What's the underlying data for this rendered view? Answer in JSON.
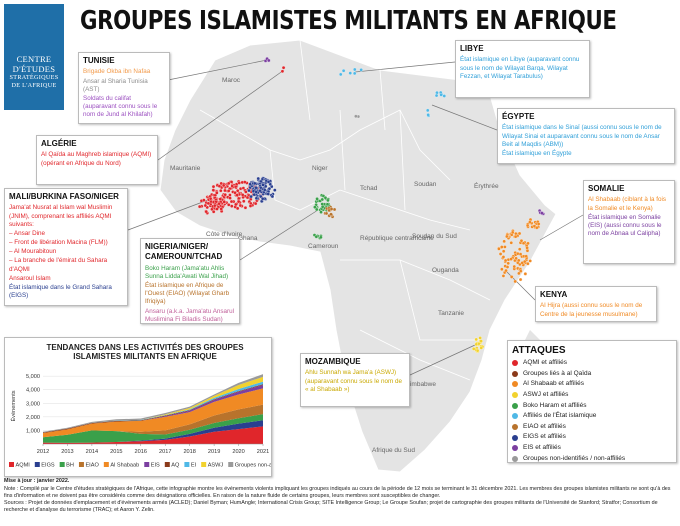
{
  "header": {
    "title": "GROUPES ISLAMISTES MILITANTS EN AFRIQUE"
  },
  "logo": {
    "lines": [
      "CENTRE",
      "D'ÉTUDES",
      "STRATÉGIQUES",
      "DE L'AFRIQUE"
    ]
  },
  "boxes": [
    {
      "title": "TUNISIE",
      "items": [
        {
          "text": "Brigade Okba ibn Nafaa",
          "color": "#f29a4a"
        },
        {
          "text": "Ansar al Sharia Tunisia (AST)",
          "color": "#8c8c8c"
        },
        {
          "text": "Soldats du califat (auparavant connu sous le nom de Jund al Khilafah)",
          "color": "#9b4fc0"
        }
      ]
    },
    {
      "title": "ALGÉRIE",
      "items": [
        {
          "text": "Al Qaïda au Maghreb islamique (AQMI) (opérant en Afrique du Nord)",
          "color": "#e0262b"
        }
      ]
    },
    {
      "title": "MALI/BURKINA FASO/NIGER",
      "items": [
        {
          "text": "Jama'at Nusrat al Islam wal Muslimin (JNIM), comprenant les affiliés AQMI suivants:",
          "color": "#e0262b"
        },
        {
          "text": "– Ansar Dine",
          "color": "#e0262b"
        },
        {
          "text": "– Front de libération Macina (FLM))",
          "color": "#e0262b"
        },
        {
          "text": "– Al Mourabitoun",
          "color": "#e0262b"
        },
        {
          "text": "– La branche de l'émirat du Sahara d'AQMI",
          "color": "#e0262b"
        },
        {
          "text": "Ansaroul Islam",
          "color": "#e0262b"
        },
        {
          "text": "État islamique dans le Grand Sahara (EIGS)",
          "color": "#2a3f8f"
        }
      ]
    },
    {
      "title": "NIGERIA/NIGER/ CAMEROUN/TCHAD",
      "items": [
        {
          "text": "Boko Haram (Jama'atu Ahlis Sunna Lidda'Awati Wal Jihad)",
          "color": "#3aa04a"
        },
        {
          "text": "État islamique en Afrique de l'Ouest (EIAO) (Wilayat Gharb Ifriqiya)",
          "color": "#b8732c"
        },
        {
          "text": "Ansaru (a.k.a. Jama'atu Ansarul Muslimina Fi Biladis Sudan)",
          "color": "#c0609a"
        }
      ]
    },
    {
      "title": "LIBYE",
      "items": [
        {
          "text": "État islamique en Libye (auparavant connu sous le nom de Wilayat Barqa, Wilayat Fezzan, et Wilayat Tarabulus)",
          "color": "#2f9fd8"
        }
      ]
    },
    {
      "title": "ÉGYPTE",
      "items": [
        {
          "text": "État islamique dans le Sinaï (aussi connu sous le nom de Wilayat Sinai et auparavant connu sous le nom de Ansar Beit al Maqdis (ABM))",
          "color": "#2f9fd8"
        },
        {
          "text": "État islamique en Égypte",
          "color": "#2f9fd8"
        }
      ]
    },
    {
      "title": "SOMALIE",
      "items": [
        {
          "text": "Al Shabaab (ciblant à la fois la Somalie et le Kenya)",
          "color": "#f08a24"
        },
        {
          "text": "État islamique en Somalie (EIS) (aussi connu sous le nom de Abnaa ul Calipha)",
          "color": "#7b3fa0"
        }
      ]
    },
    {
      "title": "KENYA",
      "items": [
        {
          "text": "Al Hijra (aussi connu sous le nom de Centre de la jeunesse musulmane)",
          "color": "#f08a24"
        }
      ]
    },
    {
      "title": "MOZAMBIQUE",
      "items": [
        {
          "text": "Ahlu Sunnah wa Jama'a (ASWJ) (auparavant connu sous le nom de « al Shabaab »)",
          "color": "#c9a800"
        }
      ]
    }
  ],
  "map": {
    "labels": [
      "Maroc",
      "Mauritanie",
      "Niger",
      "Tchad",
      "Soudan",
      "Érythrée",
      "Soudan du Sud",
      "Côte d'Ivoire",
      "Ghana",
      "Cameroun",
      "République centrafricaine",
      "Ouganda",
      "Tanzanie",
      "Zimbabwe",
      "Afrique du Sud"
    ]
  },
  "legend": {
    "title": "ATTAQUES",
    "items": [
      {
        "label": "AQMI et affiliés",
        "color": "#e0262b"
      },
      {
        "label": "Groupes liés à al Qaïda",
        "color": "#8b3a1a"
      },
      {
        "label": "Al Shabaab et affiliés",
        "color": "#f08a24"
      },
      {
        "label": "ASWJ et affiliés",
        "color": "#f2d22e"
      },
      {
        "label": "Boko Haram et affiliés",
        "color": "#3aa04a"
      },
      {
        "label": "Affiliés de l'État islamique",
        "color": "#4fb8e6"
      },
      {
        "label": "EIAO et affiliés",
        "color": "#b8732c"
      },
      {
        "label": "EIGS et affiliés",
        "color": "#2a3f8f"
      },
      {
        "label": "EIS et affiliés",
        "color": "#7b3fa0"
      },
      {
        "label": "Groupes non-identifiés / non-affiliés",
        "color": "#9a9a9a"
      }
    ]
  },
  "chart_data": {
    "type": "stacked-area",
    "title": "TENDANCES DANS LES ACTIVITÉS DES GROUPES ISLAMISTES MILITANTS EN AFRIQUE",
    "ylabel": "Événements",
    "x": [
      2012,
      2013,
      2014,
      2015,
      2016,
      2017,
      2018,
      2019,
      2020,
      2021
    ],
    "xlim": [
      2012,
      2021
    ],
    "xticks": [
      2012,
      2013,
      2014,
      2015,
      2016,
      2017,
      2018,
      2019,
      2020,
      2021
    ],
    "ylim": [
      0,
      5600
    ],
    "yticks": [
      {
        "value": 1000,
        "label": "1,000"
      },
      {
        "value": 2000,
        "label": "2,000"
      },
      {
        "value": 3000,
        "label": "3,000"
      },
      {
        "value": 4000,
        "label": "4,000"
      },
      {
        "value": 5000,
        "label": "5,000"
      }
    ],
    "series": [
      {
        "name": "AQMI",
        "color": "#e0262b",
        "values": [
          100,
          80,
          100,
          150,
          200,
          300,
          550,
          900,
          1100,
          1300
        ]
      },
      {
        "name": "EIGS",
        "color": "#2a3f8f",
        "values": [
          0,
          0,
          0,
          0,
          50,
          100,
          200,
          300,
          400,
          450
        ]
      },
      {
        "name": "BH",
        "color": "#3aa04a",
        "values": [
          400,
          600,
          900,
          800,
          500,
          300,
          300,
          350,
          400,
          450
        ]
      },
      {
        "name": "EIAO",
        "color": "#b8732c",
        "values": [
          0,
          0,
          0,
          0,
          150,
          300,
          400,
          550,
          650,
          700
        ]
      },
      {
        "name": "Al Shabaab",
        "color": "#f08a24",
        "values": [
          300,
          400,
          500,
          700,
          800,
          1000,
          900,
          1000,
          1100,
          1200
        ]
      },
      {
        "name": "EIS",
        "color": "#7b3fa0",
        "values": [
          0,
          0,
          0,
          0,
          0,
          50,
          100,
          150,
          200,
          250
        ]
      },
      {
        "name": "AQ",
        "color": "#8b3a1a",
        "values": [
          50,
          50,
          50,
          50,
          50,
          50,
          50,
          50,
          50,
          50
        ]
      },
      {
        "name": "EI",
        "color": "#4fb8e6",
        "values": [
          0,
          0,
          0,
          20,
          30,
          30,
          50,
          100,
          150,
          200
        ]
      },
      {
        "name": "ASWJ",
        "color": "#f2d22e",
        "values": [
          0,
          0,
          0,
          0,
          0,
          50,
          100,
          150,
          300,
          350
        ]
      },
      {
        "name": "Groupes non-affiliés",
        "color": "#9a9a9a",
        "values": [
          50,
          70,
          80,
          100,
          100,
          100,
          100,
          100,
          150,
          200
        ]
      }
    ]
  },
  "footer": {
    "updated": "Mise à jour : janvier 2022.",
    "note": "Note : Compilé par le Centre d'études stratégiques de l'Afrique, cette infographie montre les événements violents impliquant les groupes indiqués au cours de la période de 12 mois se terminant le 31 décembre 2021. Les membres des groupes islamistes militants ne sont qu'à des fins d'information et ne doivent pas être considérés comme des désignations officielles. En raison de la nature fluide de certains groupes, leurs membres sont susceptibles de changer.",
    "sources": "Sources : Projet de données d'emplacement et d'événements armés (ACLED); Daniel Byman; HumAngle; International Crisis Group; SITE Intelligence Group; Le Groupe Soufan; projet de cartographie des groupes militants de l'Université de Stanford; Stratfor; Consortium de recherche et d'analyse du terrorisme (TRAC); et Aaron Y. Zelin."
  }
}
